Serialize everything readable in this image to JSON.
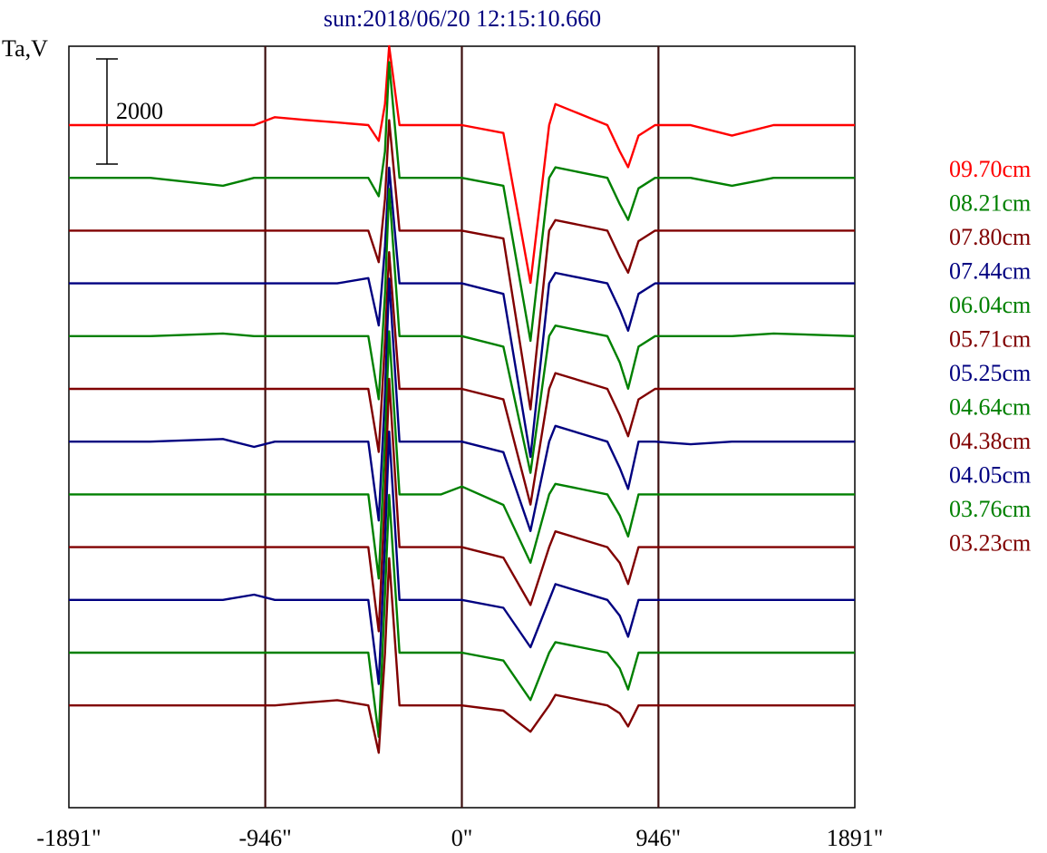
{
  "chart_data": {
    "type": "line",
    "title": "sun:2018/06/20 12:15:10.660",
    "ylabel": "Ta,V",
    "xlabel": "",
    "x_ticks": [
      "-1891\"",
      "-946\"",
      "0\"",
      "946\"",
      "1891\""
    ],
    "x_tick_values": [
      -1891,
      -946,
      0,
      946,
      1891
    ],
    "xlim": [
      -1891,
      1891
    ],
    "vertical_lines": [
      -946,
      0,
      946
    ],
    "scale_bar": {
      "label": "2000",
      "value": 2000
    },
    "grid": false,
    "legend_position": "right",
    "x": [
      -1891,
      -1500,
      -1150,
      -1000,
      -900,
      -760,
      -600,
      -450,
      -400,
      -370,
      -350,
      -300,
      -280,
      -100,
      0,
      200,
      330,
      420,
      450,
      700,
      760,
      800,
      850,
      930,
      1100,
      1300,
      1500,
      1891
    ],
    "series": [
      {
        "name": "09.70cm",
        "color": "#ff0000",
        "values": [
          0,
          0,
          0,
          0,
          150,
          100,
          50,
          0,
          -300,
          400,
          1500,
          0,
          0,
          0,
          0,
          -150,
          -3000,
          0,
          400,
          0,
          -500,
          -800,
          -200,
          0,
          0,
          -200,
          0,
          0
        ]
      },
      {
        "name": "08.21cm",
        "color": "#008000",
        "values": [
          0,
          0,
          -150,
          0,
          0,
          0,
          0,
          0,
          -350,
          500,
          2200,
          0,
          0,
          0,
          0,
          -150,
          -3100,
          0,
          200,
          0,
          -500,
          -800,
          -200,
          0,
          0,
          -150,
          0,
          0
        ]
      },
      {
        "name": "07.80cm",
        "color": "#800000",
        "values": [
          0,
          0,
          0,
          0,
          0,
          0,
          0,
          0,
          -600,
          600,
          2100,
          0,
          0,
          0,
          0,
          -150,
          -3400,
          0,
          200,
          0,
          -500,
          -800,
          -200,
          0,
          0,
          0,
          0,
          0
        ]
      },
      {
        "name": "07.44cm",
        "color": "#000080",
        "values": [
          0,
          0,
          0,
          0,
          0,
          0,
          0,
          100,
          -800,
          700,
          2200,
          0,
          0,
          0,
          0,
          -200,
          -3300,
          0,
          200,
          0,
          -500,
          -900,
          -200,
          0,
          0,
          0,
          0,
          0
        ]
      },
      {
        "name": "06.04cm",
        "color": "#008000",
        "values": [
          0,
          0,
          50,
          0,
          0,
          0,
          0,
          0,
          -1200,
          800,
          2800,
          0,
          0,
          0,
          0,
          -200,
          -2600,
          0,
          200,
          0,
          -500,
          -1000,
          -200,
          0,
          0,
          0,
          50,
          0
        ]
      },
      {
        "name": "05.71cm",
        "color": "#800000",
        "values": [
          0,
          0,
          0,
          0,
          0,
          0,
          0,
          0,
          -1200,
          900,
          2600,
          0,
          0,
          0,
          0,
          -200,
          -2200,
          0,
          300,
          0,
          -500,
          -900,
          -200,
          0,
          0,
          0,
          0,
          0
        ]
      },
      {
        "name": "05.25cm",
        "color": "#000080",
        "values": [
          0,
          0,
          50,
          -100,
          0,
          0,
          0,
          0,
          -1500,
          900,
          3100,
          0,
          0,
          0,
          0,
          -200,
          -1700,
          0,
          300,
          0,
          -500,
          -900,
          0,
          0,
          -50,
          0,
          0,
          0
        ]
      },
      {
        "name": "04.64cm",
        "color": "#008000",
        "values": [
          0,
          0,
          0,
          0,
          0,
          0,
          0,
          0,
          -1600,
          1000,
          3100,
          0,
          0,
          0,
          150,
          -200,
          -1300,
          0,
          200,
          0,
          -400,
          -800,
          0,
          0,
          0,
          0,
          0,
          0
        ]
      },
      {
        "name": "04.38cm",
        "color": "#800000",
        "values": [
          0,
          0,
          0,
          0,
          0,
          0,
          0,
          0,
          -1600,
          1000,
          3200,
          0,
          0,
          0,
          0,
          -200,
          -1100,
          0,
          300,
          0,
          -300,
          -700,
          0,
          0,
          0,
          0,
          0,
          0
        ]
      },
      {
        "name": "04.05cm",
        "color": "#000080",
        "values": [
          0,
          0,
          0,
          100,
          0,
          0,
          0,
          0,
          -1600,
          1100,
          3200,
          0,
          0,
          0,
          0,
          -150,
          -900,
          0,
          300,
          0,
          -300,
          -700,
          0,
          0,
          0,
          0,
          0,
          0
        ]
      },
      {
        "name": "03.76cm",
        "color": "#008000",
        "values": [
          0,
          0,
          0,
          0,
          0,
          0,
          0,
          0,
          -1600,
          1100,
          3000,
          0,
          0,
          0,
          0,
          -150,
          -900,
          0,
          200,
          0,
          -300,
          -700,
          0,
          0,
          0,
          0,
          0,
          0
        ]
      },
      {
        "name": "03.23cm",
        "color": "#800000",
        "values": [
          0,
          0,
          0,
          0,
          0,
          50,
          100,
          0,
          -900,
          1000,
          2800,
          0,
          0,
          0,
          0,
          -100,
          -500,
          0,
          200,
          0,
          -150,
          -400,
          0,
          0,
          0,
          0,
          0,
          0
        ]
      }
    ],
    "colors": {
      "title": "#000080",
      "axis": "#000000",
      "vertical_lines": "#3c0f0f"
    }
  }
}
